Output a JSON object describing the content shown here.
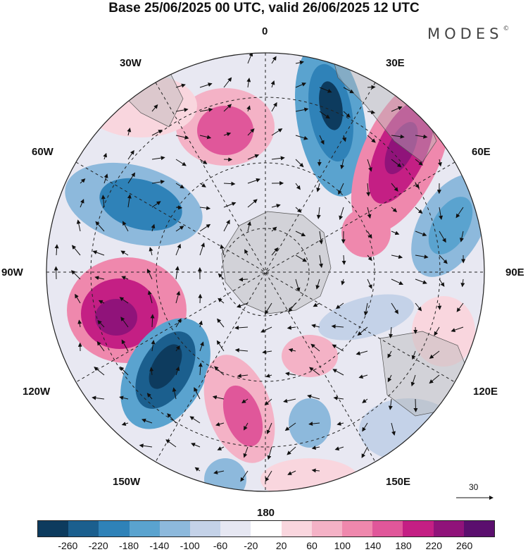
{
  "title": "Base 25/06/2025 00 UTC, valid 26/06/2025 12 UTC",
  "brand": "MODES",
  "brand_mark": "©",
  "longitude_labels": {
    "lon_0": "0",
    "lon_30e": "30E",
    "lon_60e": "60E",
    "lon_90e": "90E",
    "lon_120e": "120E",
    "lon_150e": "150E",
    "lon_180": "180",
    "lon_150w": "150W",
    "lon_120w": "120W",
    "lon_90w": "90W",
    "lon_60w": "60W",
    "lon_30w": "30W"
  },
  "vector_scale_label": "30",
  "colorbar": {
    "colors": [
      "#0d3b5e",
      "#1b5f8e",
      "#2f82b8",
      "#5aa3cf",
      "#8db9dc",
      "#c4d2e8",
      "#e6e7f2",
      "#ffffff",
      "#f9d6de",
      "#f4b2c6",
      "#ef88ad",
      "#e0579a",
      "#c41f84",
      "#90137a",
      "#5b0f6e"
    ],
    "ticks": [
      "-260",
      "-220",
      "-180",
      "-140",
      "-100",
      "-60",
      "-20",
      "20",
      "60",
      "100",
      "140",
      "180",
      "220",
      "260"
    ]
  }
}
